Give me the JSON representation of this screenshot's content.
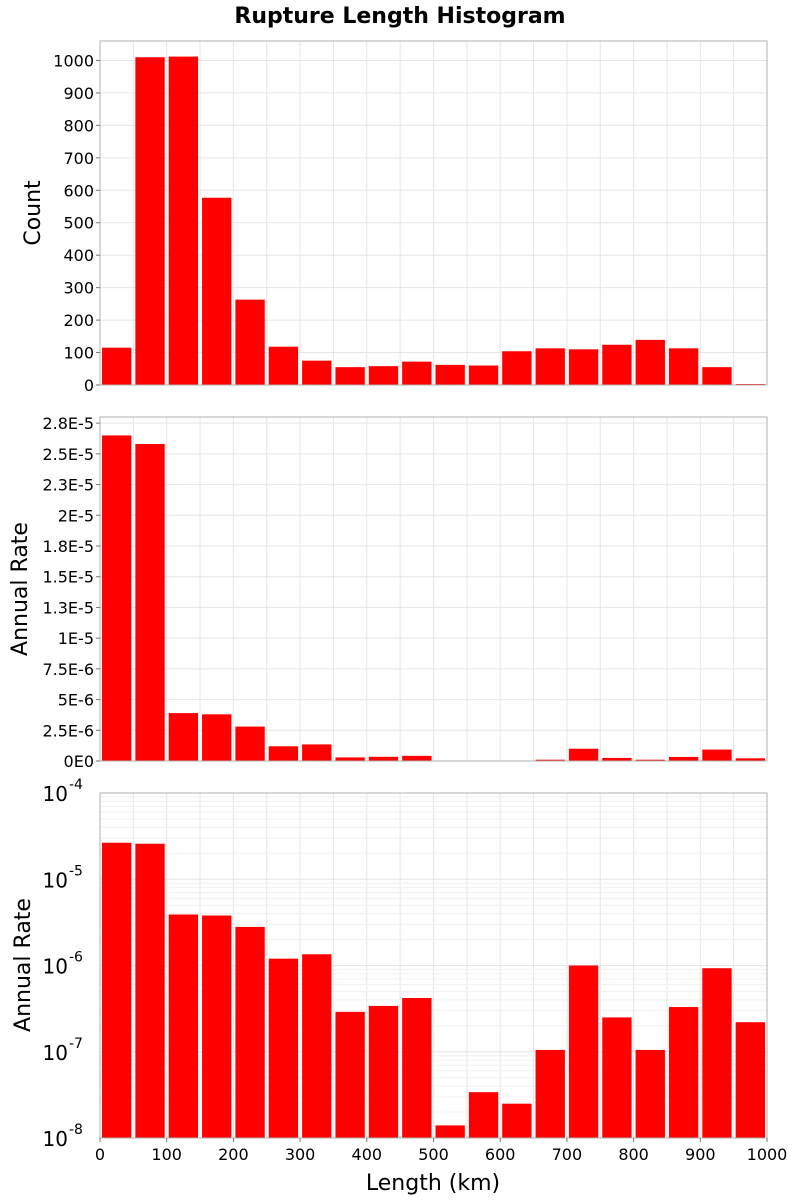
{
  "title": "Rupture Length Histogram",
  "colors": {
    "bar": "#ff0000",
    "bar_outline": "#ffffff"
  },
  "chart_data": [
    {
      "type": "bar",
      "scale": "linear",
      "ylabel": "Count",
      "bin_width": 50,
      "bin_centers": [
        25,
        75,
        125,
        175,
        225,
        275,
        325,
        375,
        425,
        475,
        525,
        575,
        625,
        675,
        725,
        775,
        825,
        875,
        925,
        975
      ],
      "values": [
        115,
        1010,
        1012,
        577,
        263,
        118,
        75,
        55,
        58,
        72,
        62,
        60,
        104,
        113,
        110,
        124,
        139,
        113,
        55,
        3
      ],
      "ylim": [
        0,
        1060
      ],
      "yticks": [
        0,
        100,
        200,
        300,
        400,
        500,
        600,
        700,
        800,
        900,
        1000
      ],
      "ytick_labels": [
        "0",
        "100",
        "200",
        "300",
        "400",
        "500",
        "600",
        "700",
        "800",
        "900",
        "1000"
      ],
      "xlim": [
        0,
        1000
      ],
      "grid": true
    },
    {
      "type": "bar",
      "scale": "linear",
      "ylabel": "Annual Rate",
      "bin_width": 50,
      "bin_centers": [
        25,
        75,
        125,
        175,
        225,
        275,
        325,
        375,
        425,
        475,
        525,
        575,
        625,
        675,
        725,
        775,
        825,
        875,
        925,
        975
      ],
      "values": [
        2.65e-05,
        2.58e-05,
        3.9e-06,
        3.8e-06,
        2.8e-06,
        1.2e-06,
        1.35e-06,
        2.9e-07,
        3.4e-07,
        4.2e-07,
        1.4e-08,
        3.4e-08,
        2.5e-08,
        1.05e-07,
        1e-06,
        2.5e-07,
        1.05e-07,
        3.3e-07,
        9.3e-07,
        2.2e-07
      ],
      "ylim": [
        0,
        2.8e-05
      ],
      "yticks": [
        0,
        2.5e-06,
        5e-06,
        7.5e-06,
        1e-05,
        1.25e-05,
        1.5e-05,
        1.75e-05,
        2e-05,
        2.25e-05,
        2.5e-05,
        2.75e-05
      ],
      "ytick_labels": [
        "0E0",
        "2.5E-6",
        "5E-6",
        "7.5E-6",
        "1E-5",
        "1.3E-5",
        "1.5E-5",
        "1.8E-5",
        "2E-5",
        "2.3E-5",
        "2.5E-5",
        "2.8E-5"
      ],
      "xlim": [
        0,
        1000
      ],
      "grid": true
    },
    {
      "type": "bar",
      "scale": "log",
      "ylabel": "Annual Rate",
      "xlabel": "Length (km)",
      "bin_width": 50,
      "bin_centers": [
        25,
        75,
        125,
        175,
        225,
        275,
        325,
        375,
        425,
        475,
        525,
        575,
        625,
        675,
        725,
        775,
        825,
        875,
        925,
        975
      ],
      "values": [
        2.65e-05,
        2.58e-05,
        3.9e-06,
        3.8e-06,
        2.8e-06,
        1.2e-06,
        1.35e-06,
        2.9e-07,
        3.4e-07,
        4.2e-07,
        1.4e-08,
        3.4e-08,
        2.5e-08,
        1.05e-07,
        1e-06,
        2.5e-07,
        1.05e-07,
        3.3e-07,
        9.3e-07,
        2.2e-07
      ],
      "ylim": [
        1e-08,
        0.0001
      ],
      "ytick_exponents": [
        -8,
        -7,
        -6,
        -5,
        -4
      ],
      "ytick_base": "10",
      "ytick_sup_labels": [
        "-8",
        "-7",
        "-6",
        "-5",
        "-4"
      ],
      "xticks": [
        0,
        100,
        200,
        300,
        400,
        500,
        600,
        700,
        800,
        900,
        1000
      ],
      "xtick_labels": [
        "0",
        "100",
        "200",
        "300",
        "400",
        "500",
        "600",
        "700",
        "800",
        "900",
        "1000"
      ],
      "xlim": [
        0,
        1000
      ],
      "grid": true
    }
  ]
}
